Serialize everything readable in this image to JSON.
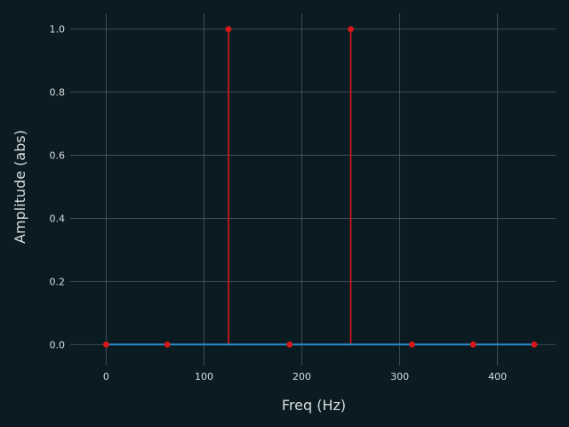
{
  "chart_data": {
    "type": "stem",
    "title": "",
    "xlabel": "Freq (Hz)",
    "ylabel": "Amplitude (abs)",
    "xlim": [
      -31.25,
      459.375
    ],
    "ylim": [
      -0.05,
      1.05
    ],
    "xticks": [
      0,
      100,
      200,
      300,
      400
    ],
    "yticks": [
      0.0,
      0.2,
      0.4,
      0.6,
      0.8,
      1.0
    ],
    "xtick_labels": [
      "0",
      "100",
      "200",
      "300",
      "400"
    ],
    "ytick_labels": [
      "0.0",
      "0.2",
      "0.4",
      "0.6",
      "0.8",
      "1.0"
    ],
    "grid": true,
    "x": [
      0,
      62.5,
      125,
      187.5,
      250,
      312.5,
      375,
      437.5
    ],
    "y": [
      0,
      0,
      1,
      0,
      1,
      0,
      0,
      0
    ],
    "baseline": 0
  },
  "colors": {
    "background": "#0b1b22",
    "grid": "#4a5a60",
    "text": "#d6dde0",
    "stem": "#d81818",
    "marker": "#d81818",
    "baseline": "#2b8ccc"
  }
}
